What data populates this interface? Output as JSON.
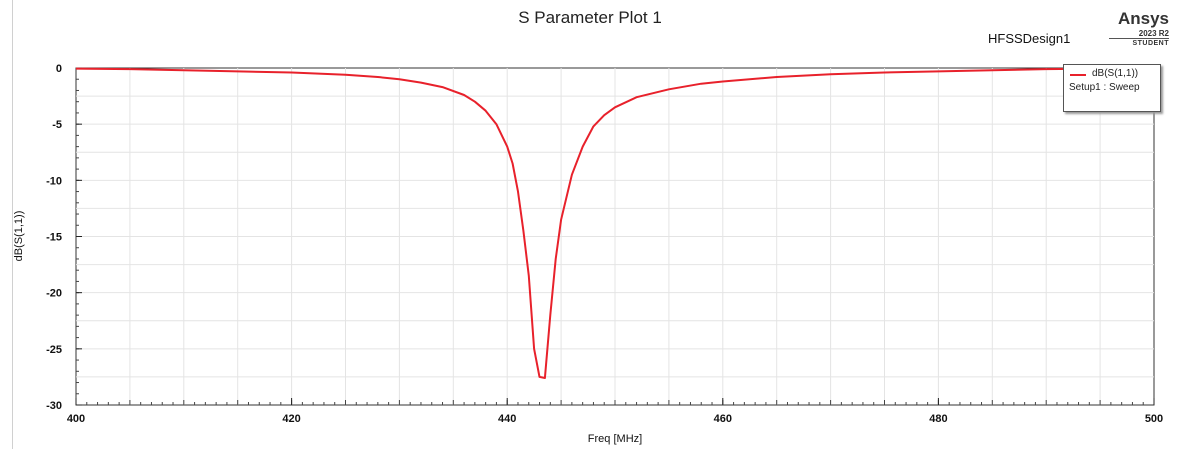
{
  "header": {
    "title": "S Parameter Plot 1",
    "design": "HFSSDesign1",
    "brand": "Ansys",
    "version": "2023 R2",
    "edition": "STUDENT"
  },
  "legend": {
    "series_label": "dB(S(1,1))",
    "setup_label": "Setup1 : Sweep"
  },
  "colors": {
    "series": "#e8212b",
    "grid": "#e4e4e4"
  },
  "chart_data": {
    "type": "line",
    "xlabel": "Freq [MHz]",
    "ylabel": "dB(S(1,1))",
    "xlim": [
      400,
      500
    ],
    "ylim": [
      -30,
      0
    ],
    "xticks": [
      400,
      420,
      440,
      460,
      480,
      500
    ],
    "yticks": [
      0,
      -5,
      -10,
      -15,
      -20,
      -25,
      -30
    ],
    "grid": true,
    "legend_position": "top-right",
    "series": [
      {
        "name": "dB(S(1,1))",
        "x": [
          400,
          405,
          410,
          415,
          420,
          425,
          428,
          430,
          432,
          434,
          436,
          437,
          438,
          439,
          440,
          440.5,
          441,
          441.5,
          442,
          442.5,
          443,
          443.5,
          444,
          444.5,
          445,
          446,
          447,
          448,
          449,
          450,
          452,
          455,
          458,
          460,
          465,
          470,
          475,
          480,
          485,
          490,
          495,
          500
        ],
        "y": [
          -0.05,
          -0.1,
          -0.2,
          -0.3,
          -0.4,
          -0.6,
          -0.8,
          -1.0,
          -1.3,
          -1.7,
          -2.4,
          -3.0,
          -3.8,
          -5.0,
          -7.0,
          -8.5,
          -11.0,
          -14.5,
          -18.5,
          -25.0,
          -27.5,
          -27.6,
          -22.0,
          -17.0,
          -13.5,
          -9.5,
          -7.0,
          -5.2,
          -4.2,
          -3.5,
          -2.6,
          -1.9,
          -1.4,
          -1.2,
          -0.8,
          -0.55,
          -0.4,
          -0.3,
          -0.2,
          -0.1,
          -0.05,
          -0.02
        ]
      }
    ]
  }
}
